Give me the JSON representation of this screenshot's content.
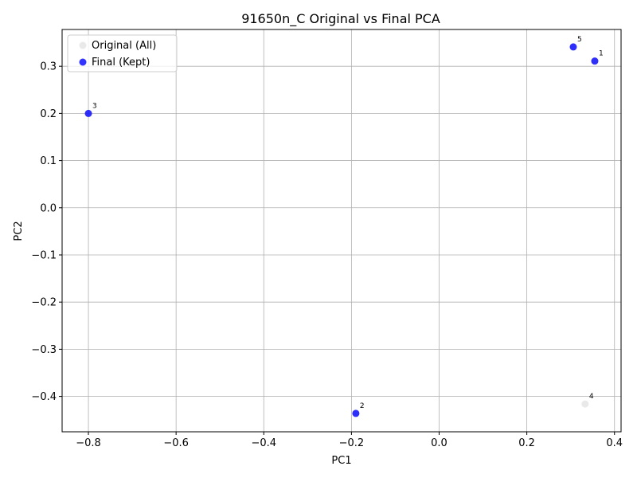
{
  "chart_data": {
    "type": "scatter",
    "title": "91650n_C Original vs Final PCA",
    "xlabel": "PC1",
    "ylabel": "PC2",
    "xlim": [
      -0.86,
      0.415
    ],
    "ylim": [
      -0.475,
      0.378
    ],
    "xticks": [
      -0.8,
      -0.6,
      -0.4,
      -0.2,
      0.0,
      0.2,
      0.4
    ],
    "xtick_labels": [
      "−0.8",
      "−0.6",
      "−0.4",
      "−0.2",
      "0.0",
      "0.2",
      "0.4"
    ],
    "yticks": [
      -0.4,
      -0.3,
      -0.2,
      -0.1,
      0.0,
      0.1,
      0.2,
      0.3
    ],
    "ytick_labels": [
      "−0.4",
      "−0.3",
      "−0.2",
      "−0.1",
      "0.0",
      "0.1",
      "0.2",
      "0.3"
    ],
    "grid": true,
    "legend_position": "top-left",
    "series": [
      {
        "name": "Original (All)",
        "color": "#d3d3d3",
        "points": [
          {
            "label": "1",
            "x": 0.355,
            "y": 0.311
          },
          {
            "label": "2",
            "x": -0.19,
            "y": -0.436
          },
          {
            "label": "3",
            "x": -0.8,
            "y": 0.2
          },
          {
            "label": "4",
            "x": 0.333,
            "y": -0.416
          },
          {
            "label": "5",
            "x": 0.306,
            "y": 0.341
          }
        ]
      },
      {
        "name": "Final (Kept)",
        "color": "#0000ff",
        "points": [
          {
            "label": "1",
            "x": 0.355,
            "y": 0.311
          },
          {
            "label": "2",
            "x": -0.19,
            "y": -0.436
          },
          {
            "label": "3",
            "x": -0.8,
            "y": 0.2
          },
          {
            "label": "5",
            "x": 0.306,
            "y": 0.341
          }
        ]
      }
    ]
  }
}
